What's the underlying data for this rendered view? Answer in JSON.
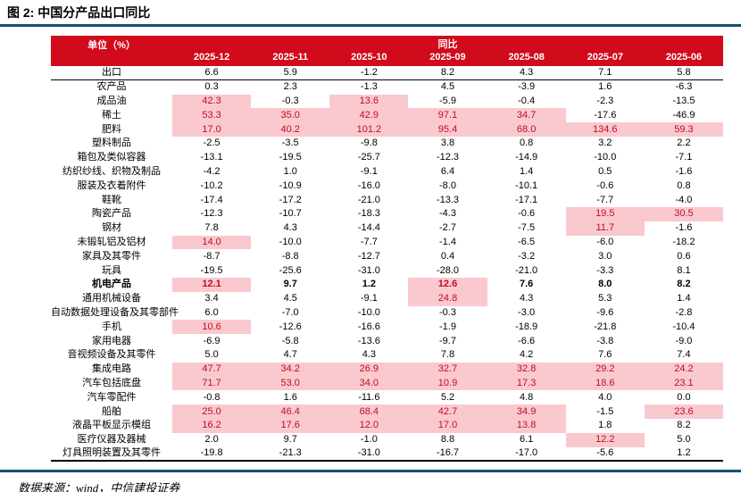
{
  "title": "图 2: 中国分产品出口同比",
  "source": "数据来源：wind，中信建投证券",
  "colors": {
    "header_red": "#d10a1c",
    "highlight_pink": "#f9c9cf",
    "highlight_text": "#bf0e1e",
    "rule_teal": "#14506e"
  },
  "chart_data": {
    "type": "table",
    "title": "图 2: 中国分产品出口同比",
    "unit_label": "单位（%）",
    "group_header": "同比",
    "columns": [
      "2025-12",
      "2025-11",
      "2025-10",
      "2025-09",
      "2025-08",
      "2025-07",
      "2025-06"
    ],
    "rows": [
      {
        "name": "出口",
        "values": [
          "6.6",
          "5.9",
          "-1.2",
          "8.2",
          "4.3",
          "7.1",
          "5.8"
        ],
        "highlight": [
          0,
          0,
          0,
          0,
          0,
          0,
          0
        ],
        "bold": false,
        "divider": true
      },
      {
        "name": "农产品",
        "values": [
          "0.3",
          "2.3",
          "-1.3",
          "4.5",
          "-3.9",
          "1.6",
          "-6.3"
        ],
        "highlight": [
          0,
          0,
          0,
          0,
          0,
          0,
          0
        ],
        "bold": false,
        "divider": false
      },
      {
        "name": "成品油",
        "values": [
          "42.3",
          "-0.3",
          "13.6",
          "-5.9",
          "-0.4",
          "-2.3",
          "-13.5"
        ],
        "highlight": [
          1,
          0,
          1,
          0,
          0,
          0,
          0
        ],
        "bold": false,
        "divider": false
      },
      {
        "name": "稀土",
        "values": [
          "53.3",
          "35.0",
          "42.9",
          "97.1",
          "34.7",
          "-17.6",
          "-46.9"
        ],
        "highlight": [
          1,
          1,
          1,
          1,
          1,
          0,
          0
        ],
        "bold": false,
        "divider": false
      },
      {
        "name": "肥料",
        "values": [
          "17.0",
          "40.2",
          "101.2",
          "95.4",
          "68.0",
          "134.6",
          "59.3"
        ],
        "highlight": [
          1,
          1,
          1,
          1,
          1,
          1,
          1
        ],
        "bold": false,
        "divider": false
      },
      {
        "name": "塑料制品",
        "values": [
          "-2.5",
          "-3.5",
          "-9.8",
          "3.8",
          "0.8",
          "3.2",
          "2.2"
        ],
        "highlight": [
          0,
          0,
          0,
          0,
          0,
          0,
          0
        ],
        "bold": false,
        "divider": false
      },
      {
        "name": "箱包及类似容器",
        "values": [
          "-13.1",
          "-19.5",
          "-25.7",
          "-12.3",
          "-14.9",
          "-10.0",
          "-7.1"
        ],
        "highlight": [
          0,
          0,
          0,
          0,
          0,
          0,
          0
        ],
        "bold": false,
        "divider": false
      },
      {
        "name": "纺织纱线、织物及制品",
        "values": [
          "-4.2",
          "1.0",
          "-9.1",
          "6.4",
          "1.4",
          "0.5",
          "-1.6"
        ],
        "highlight": [
          0,
          0,
          0,
          0,
          0,
          0,
          0
        ],
        "bold": false,
        "divider": false
      },
      {
        "name": "服装及衣着附件",
        "values": [
          "-10.2",
          "-10.9",
          "-16.0",
          "-8.0",
          "-10.1",
          "-0.6",
          "0.8"
        ],
        "highlight": [
          0,
          0,
          0,
          0,
          0,
          0,
          0
        ],
        "bold": false,
        "divider": false
      },
      {
        "name": "鞋靴",
        "values": [
          "-17.4",
          "-17.2",
          "-21.0",
          "-13.3",
          "-17.1",
          "-7.7",
          "-4.0"
        ],
        "highlight": [
          0,
          0,
          0,
          0,
          0,
          0,
          0
        ],
        "bold": false,
        "divider": false
      },
      {
        "name": "陶瓷产品",
        "values": [
          "-12.3",
          "-10.7",
          "-18.3",
          "-4.3",
          "-0.6",
          "19.5",
          "30.5"
        ],
        "highlight": [
          0,
          0,
          0,
          0,
          0,
          1,
          1
        ],
        "bold": false,
        "divider": false
      },
      {
        "name": "钢材",
        "values": [
          "7.8",
          "4.3",
          "-14.4",
          "-2.7",
          "-7.5",
          "11.7",
          "-1.6"
        ],
        "highlight": [
          0,
          0,
          0,
          0,
          0,
          1,
          0
        ],
        "bold": false,
        "divider": false
      },
      {
        "name": "未锻轧铝及铝材",
        "values": [
          "14.0",
          "-10.0",
          "-7.7",
          "-1.4",
          "-6.5",
          "-6.0",
          "-18.2"
        ],
        "highlight": [
          1,
          0,
          0,
          0,
          0,
          0,
          0
        ],
        "bold": false,
        "divider": false
      },
      {
        "name": "家具及其零件",
        "values": [
          "-8.7",
          "-8.8",
          "-12.7",
          "0.4",
          "-3.2",
          "3.0",
          "0.6"
        ],
        "highlight": [
          0,
          0,
          0,
          0,
          0,
          0,
          0
        ],
        "bold": false,
        "divider": false
      },
      {
        "name": "玩具",
        "values": [
          "-19.5",
          "-25.6",
          "-31.0",
          "-28.0",
          "-21.0",
          "-3.3",
          "8.1"
        ],
        "highlight": [
          0,
          0,
          0,
          0,
          0,
          0,
          0
        ],
        "bold": false,
        "divider": false
      },
      {
        "name": "机电产品",
        "values": [
          "12.1",
          "9.7",
          "1.2",
          "12.6",
          "7.6",
          "8.0",
          "8.2"
        ],
        "highlight": [
          1,
          0,
          0,
          1,
          0,
          0,
          0
        ],
        "bold": true,
        "divider": false
      },
      {
        "name": "通用机械设备",
        "values": [
          "3.4",
          "4.5",
          "-9.1",
          "24.8",
          "4.3",
          "5.3",
          "1.4"
        ],
        "highlight": [
          0,
          0,
          0,
          1,
          0,
          0,
          0
        ],
        "bold": false,
        "divider": false
      },
      {
        "name": "自动数据处理设备及其零部件",
        "values": [
          "6.0",
          "-7.0",
          "-10.0",
          "-0.3",
          "-3.0",
          "-9.6",
          "-2.8"
        ],
        "highlight": [
          0,
          0,
          0,
          0,
          0,
          0,
          0
        ],
        "bold": false,
        "divider": false
      },
      {
        "name": "手机",
        "values": [
          "10.6",
          "-12.6",
          "-16.6",
          "-1.9",
          "-18.9",
          "-21.8",
          "-10.4"
        ],
        "highlight": [
          1,
          0,
          0,
          0,
          0,
          0,
          0
        ],
        "bold": false,
        "divider": false
      },
      {
        "name": "家用电器",
        "values": [
          "-6.9",
          "-5.8",
          "-13.6",
          "-9.7",
          "-6.6",
          "-3.8",
          "-9.0"
        ],
        "highlight": [
          0,
          0,
          0,
          0,
          0,
          0,
          0
        ],
        "bold": false,
        "divider": false
      },
      {
        "name": "音视频设备及其零件",
        "values": [
          "5.0",
          "4.7",
          "4.3",
          "7.8",
          "4.2",
          "7.6",
          "7.4"
        ],
        "highlight": [
          0,
          0,
          0,
          0,
          0,
          0,
          0
        ],
        "bold": false,
        "divider": false
      },
      {
        "name": "集成电路",
        "values": [
          "47.7",
          "34.2",
          "26.9",
          "32.7",
          "32.8",
          "29.2",
          "24.2"
        ],
        "highlight": [
          1,
          1,
          1,
          1,
          1,
          1,
          1
        ],
        "bold": false,
        "divider": false
      },
      {
        "name": "汽车包括底盘",
        "values": [
          "71.7",
          "53.0",
          "34.0",
          "10.9",
          "17.3",
          "18.6",
          "23.1"
        ],
        "highlight": [
          1,
          1,
          1,
          1,
          1,
          1,
          1
        ],
        "bold": false,
        "divider": false
      },
      {
        "name": "汽车零配件",
        "values": [
          "-0.8",
          "1.6",
          "-11.6",
          "5.2",
          "4.8",
          "4.0",
          "0.0"
        ],
        "highlight": [
          0,
          0,
          0,
          0,
          0,
          0,
          0
        ],
        "bold": false,
        "divider": false
      },
      {
        "name": "船舶",
        "values": [
          "25.0",
          "46.4",
          "68.4",
          "42.7",
          "34.9",
          "-1.5",
          "23.6"
        ],
        "highlight": [
          1,
          1,
          1,
          1,
          1,
          0,
          1
        ],
        "bold": false,
        "divider": false
      },
      {
        "name": "液晶平板显示模组",
        "values": [
          "16.2",
          "17.6",
          "12.0",
          "17.0",
          "13.8",
          "1.8",
          "8.2"
        ],
        "highlight": [
          1,
          1,
          1,
          1,
          1,
          0,
          0
        ],
        "bold": false,
        "divider": false
      },
      {
        "name": "医疗仪器及器械",
        "values": [
          "2.0",
          "9.7",
          "-1.0",
          "8.8",
          "6.1",
          "12.2",
          "5.0"
        ],
        "highlight": [
          0,
          0,
          0,
          0,
          0,
          1,
          0
        ],
        "bold": false,
        "divider": false
      },
      {
        "name": "灯具照明装置及其零件",
        "values": [
          "-19.8",
          "-21.3",
          "-31.0",
          "-16.7",
          "-17.0",
          "-5.6",
          "1.2"
        ],
        "highlight": [
          0,
          0,
          0,
          0,
          0,
          0,
          0
        ],
        "bold": false,
        "divider": false
      }
    ]
  }
}
